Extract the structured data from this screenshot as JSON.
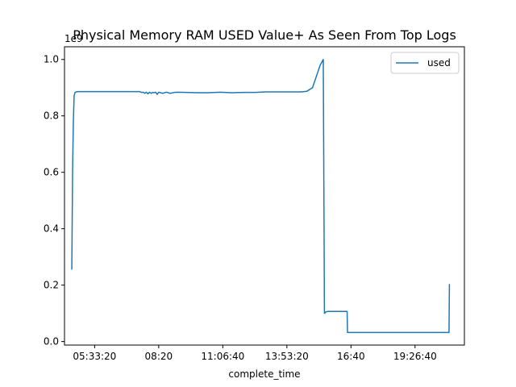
{
  "chart_data": {
    "type": "line",
    "title": "Physical Memory RAM USED Value+ As Seen From Top Logs",
    "xlabel": "complete_time",
    "ylabel": "",
    "y_offset_text": "1e9",
    "ylim": [
      -0.0125,
      1.045
    ],
    "yticks": [
      0.0,
      0.2,
      0.4,
      0.6,
      0.8,
      1.0
    ],
    "ytick_labels": [
      "0.0",
      "0.2",
      "0.4",
      "0.6",
      "0.8",
      "1.0"
    ],
    "xlim": [
      "04:15:00",
      "21:35:00"
    ],
    "xticks": [
      "05:33:20",
      "08:20:00",
      "11:06:40",
      "13:53:20",
      "16:40:00",
      "19:26:40"
    ],
    "xtick_labels": [
      "05:33:20",
      "08:20",
      "11:06:40",
      "13:53:20",
      "16:40",
      "19:26:40"
    ],
    "grid": false,
    "legend": {
      "position": "upper-right",
      "entries": [
        "used"
      ]
    },
    "series": [
      {
        "name": "used",
        "color": "#1f77b4",
        "x": [
          "04:34:00",
          "04:36:00",
          "04:38:00",
          "04:40:00",
          "04:42:00",
          "04:45:00",
          "04:50:00",
          "05:00:00",
          "06:00:00",
          "07:30:00",
          "07:36:00",
          "07:40:00",
          "07:44:00",
          "07:48:00",
          "07:52:00",
          "07:56:00",
          "08:00:00",
          "08:04:00",
          "08:08:00",
          "08:12:00",
          "08:16:00",
          "08:20:00",
          "08:30:00",
          "08:40:00",
          "08:50:00",
          "09:00:00",
          "09:10:00",
          "09:30:00",
          "10:00:00",
          "10:30:00",
          "11:00:00",
          "11:30:00",
          "12:00:00",
          "12:30:00",
          "13:00:00",
          "13:30:00",
          "14:00:00",
          "14:30:00",
          "14:45:00",
          "15:00:00",
          "15:10:00",
          "15:20:00",
          "15:28:00",
          "15:31:00",
          "15:32:00",
          "15:33:00",
          "15:40:00",
          "16:00:00",
          "16:30:00",
          "16:31:00",
          "17:00:00",
          "18:00:00",
          "19:00:00",
          "20:00:00",
          "20:55:00",
          "20:56:00"
        ],
        "values": [
          0.255,
          0.6,
          0.78,
          0.87,
          0.882,
          0.885,
          0.886,
          0.886,
          0.886,
          0.886,
          0.883,
          0.884,
          0.88,
          0.884,
          0.878,
          0.884,
          0.88,
          0.883,
          0.882,
          0.884,
          0.876,
          0.884,
          0.88,
          0.884,
          0.88,
          0.883,
          0.884,
          0.883,
          0.882,
          0.882,
          0.884,
          0.882,
          0.883,
          0.883,
          0.885,
          0.885,
          0.885,
          0.885,
          0.887,
          0.9,
          0.94,
          0.98,
          1.0,
          0.1,
          0.1,
          0.104,
          0.107,
          0.107,
          0.107,
          0.032,
          0.032,
          0.032,
          0.032,
          0.032,
          0.032,
          0.204
        ]
      }
    ]
  }
}
